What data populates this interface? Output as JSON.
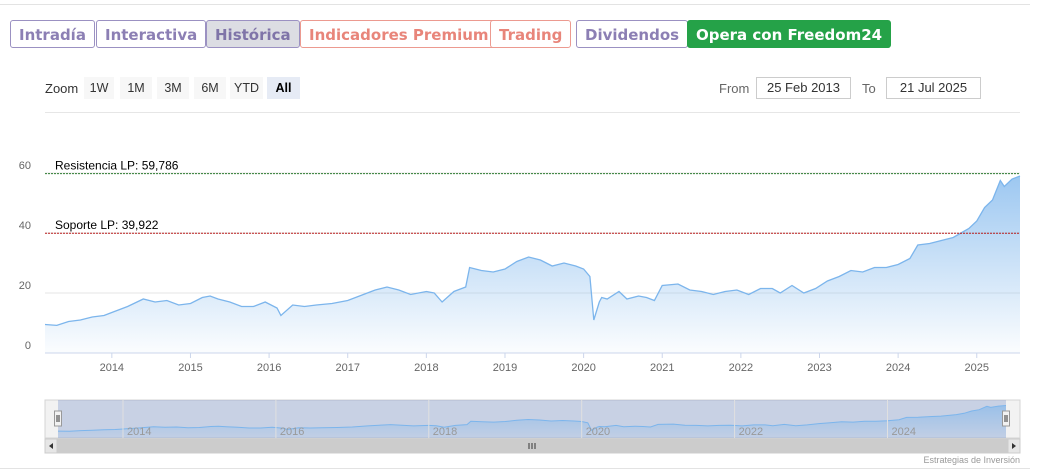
{
  "tabs": [
    {
      "label": "Intradía",
      "style": "purple"
    },
    {
      "label": "Interactiva",
      "style": "purple"
    },
    {
      "label": "Histórica",
      "style": "active"
    },
    {
      "label": "Indicadores Premium",
      "style": "salmon"
    },
    {
      "label": "Trading",
      "style": "salmon"
    },
    {
      "label": "Dividendos",
      "style": "purple"
    },
    {
      "label": "Opera con Freedom24",
      "style": "green"
    }
  ],
  "range_selector": {
    "zoom_label": "Zoom",
    "buttons": [
      "1W",
      "1M",
      "3M",
      "6M",
      "YTD",
      "All"
    ],
    "selected": "All",
    "from_label": "From",
    "from_value": "25 Feb 2013",
    "to_label": "To",
    "to_value": "21 Jul 2025"
  },
  "credits": "Estrategias de Inversión",
  "colors": {
    "line": "#7cb5ec",
    "resistance": "#2f7d32",
    "support": "#b71c1c",
    "green_button": "#25a248"
  },
  "chart_data": {
    "type": "area",
    "x_unit": "year",
    "xlim": [
      2013.15,
      2025.55
    ],
    "ylim": [
      0,
      62
    ],
    "yticks": [
      0,
      20,
      40,
      60
    ],
    "xticks": [
      2014,
      2015,
      2016,
      2017,
      2018,
      2019,
      2020,
      2021,
      2022,
      2023,
      2024,
      2025
    ],
    "navigator_ticks": [
      2014,
      2016,
      2018,
      2020,
      2022,
      2024
    ],
    "annotations": [
      {
        "label": "Resistencia LP: 59,786",
        "value": 59.786,
        "kind": "resistance"
      },
      {
        "label": "Soporte LP: 39,922",
        "value": 39.922,
        "kind": "support"
      }
    ],
    "series": [
      {
        "x": [
          2013.15,
          2013.3,
          2013.45,
          2013.6,
          2013.75,
          2013.9,
          2014.0,
          2014.2,
          2014.4,
          2014.55,
          2014.7,
          2014.85,
          2015.0,
          2015.15,
          2015.25,
          2015.35,
          2015.5,
          2015.65,
          2015.8,
          2015.95,
          2016.1,
          2016.15,
          2016.3,
          2016.45,
          2016.6,
          2016.8,
          2017.0,
          2017.2,
          2017.35,
          2017.5,
          2017.65,
          2017.8,
          2018.0,
          2018.1,
          2018.2,
          2018.35,
          2018.5,
          2018.55,
          2018.7,
          2018.85,
          2019.0,
          2019.15,
          2019.3,
          2019.45,
          2019.6,
          2019.75,
          2019.9,
          2020.0,
          2020.08,
          2020.13,
          2020.2,
          2020.23,
          2020.3,
          2020.45,
          2020.55,
          2020.7,
          2020.8,
          2020.9,
          2021.0,
          2021.2,
          2021.35,
          2021.5,
          2021.65,
          2021.8,
          2021.95,
          2022.1,
          2022.25,
          2022.4,
          2022.5,
          2022.65,
          2022.8,
          2022.95,
          2023.1,
          2023.25,
          2023.4,
          2023.55,
          2023.7,
          2023.85,
          2024.0,
          2024.15,
          2024.25,
          2024.4,
          2024.55,
          2024.7,
          2024.8,
          2024.9,
          2025.0,
          2025.1,
          2025.2,
          2025.3,
          2025.35,
          2025.45,
          2025.55
        ],
        "values": [
          9.5,
          9.2,
          10.5,
          11.0,
          12.0,
          12.5,
          13.5,
          15.5,
          18.0,
          17.0,
          17.5,
          16.0,
          16.5,
          18.5,
          19.0,
          18.0,
          17.0,
          15.5,
          15.5,
          17.0,
          15.0,
          12.5,
          16.0,
          15.5,
          16.0,
          16.5,
          17.5,
          19.5,
          21.0,
          22.0,
          21.0,
          19.5,
          20.5,
          20.0,
          17.0,
          20.5,
          22.0,
          28.5,
          27.5,
          27.0,
          28.0,
          30.5,
          32.0,
          31.0,
          29.0,
          30.0,
          29.0,
          28.0,
          25.5,
          11.0,
          17.0,
          18.5,
          18.0,
          20.5,
          18.0,
          19.0,
          18.5,
          17.5,
          22.5,
          23.0,
          21.0,
          20.5,
          19.5,
          20.5,
          21.0,
          19.5,
          21.5,
          21.5,
          20.0,
          22.5,
          20.0,
          21.5,
          24.0,
          25.5,
          27.5,
          27.0,
          28.5,
          28.5,
          29.5,
          31.5,
          36.0,
          36.5,
          37.5,
          38.5,
          40.0,
          41.5,
          44.0,
          48.5,
          51.0,
          57.5,
          55.5,
          58.0,
          59.0
        ]
      }
    ]
  }
}
